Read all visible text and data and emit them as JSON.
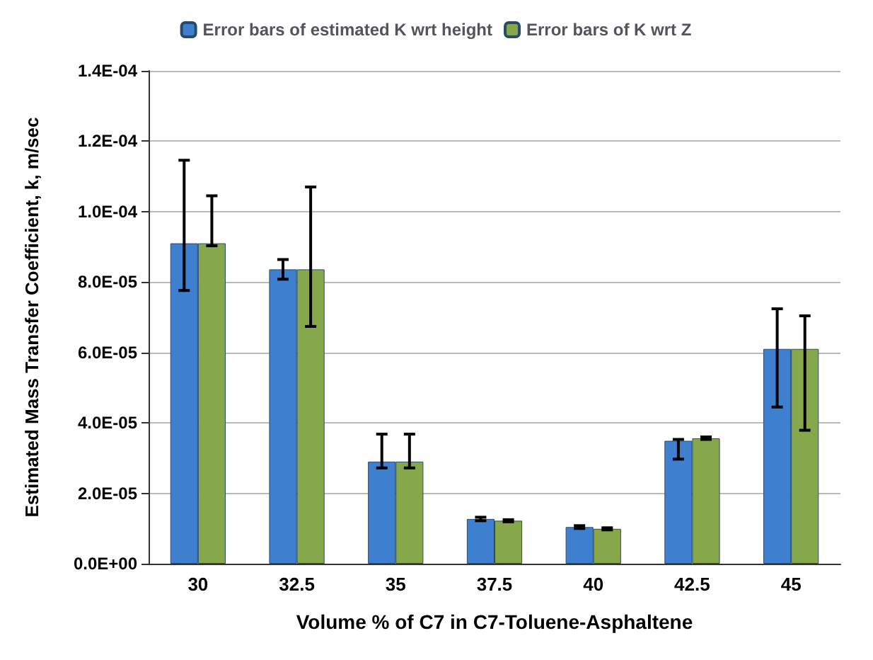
{
  "chart_data": {
    "type": "bar",
    "xlabel": "Volume % of C7 in C7-Toluene-Asphaltene",
    "ylabel": "Estimated Mass Transfer Coefficient, k, m/sec",
    "categories": [
      "30",
      "32.5",
      "35",
      "37.5",
      "40",
      "42.5",
      "45"
    ],
    "series": [
      {
        "name": "Error bars of estimated K wrt height",
        "color": "#3f7fcf",
        "values": [
          9.1e-05,
          8.36e-05,
          2.9e-05,
          1.27e-05,
          1.04e-05,
          3.49e-05,
          6.1e-05
        ],
        "errors": [
          [
            7.76e-05,
            0.0001146
          ],
          [
            8.08e-05,
            8.64e-05
          ],
          [
            2.72e-05,
            3.68e-05
          ],
          [
            1.22e-05,
            1.32e-05
          ],
          [
            1e-05,
            1.08e-05
          ],
          [
            2.97e-05,
            3.53e-05
          ],
          [
            4.45e-05,
            7.24e-05
          ]
        ]
      },
      {
        "name": "Error bars of K wrt Z",
        "color": "#86a84a",
        "values": [
          9.1e-05,
          8.36e-05,
          2.9e-05,
          1.22e-05,
          9.9e-06,
          3.56e-05,
          6.1e-05
        ],
        "errors": [
          [
            9.03e-05,
            0.0001045
          ],
          [
            6.74e-05,
            0.000107
          ],
          [
            2.72e-05,
            3.68e-05
          ],
          [
            1.19e-05,
            1.25e-05
          ],
          [
            9.6e-06,
            1.02e-05
          ],
          [
            3.53e-05,
            3.6e-05
          ],
          [
            3.79e-05,
            7.04e-05
          ]
        ]
      }
    ],
    "ylim": [
      0,
      0.00014
    ],
    "yticks": [
      {
        "value": 0,
        "label": "0.0E+00"
      },
      {
        "value": 2e-05,
        "label": "2.0E-05"
      },
      {
        "value": 4e-05,
        "label": "4.0E-05"
      },
      {
        "value": 6e-05,
        "label": "6.0E-05"
      },
      {
        "value": 8e-05,
        "label": "8.0E-05"
      },
      {
        "value": 0.0001,
        "label": "1.0E-04"
      },
      {
        "value": 0.00012,
        "label": "1.2E-04"
      },
      {
        "value": 0.00014,
        "label": "1.4E-04"
      }
    ],
    "grid": "y",
    "legend": "top"
  }
}
